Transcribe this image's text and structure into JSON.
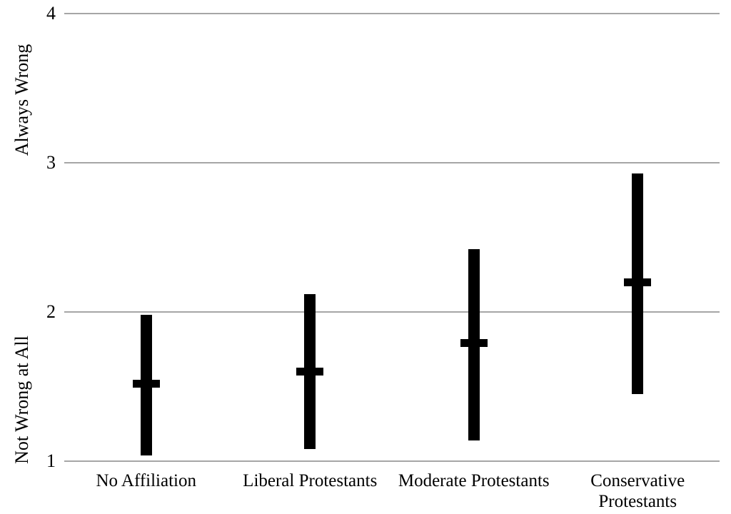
{
  "figure": {
    "background_color": "#ffffff",
    "bar_color": "#000000",
    "gridline_color": "#a6a6a6",
    "text_color": "#000000"
  },
  "chart_data": {
    "type": "bar",
    "subtype": "floating-range-bars-with-mean-tick",
    "title": "",
    "xlabel": "",
    "categories": [
      "No Affiliation",
      "Liberal Protestants",
      "Moderate Protestants",
      "Conservative Protestants"
    ],
    "series": [
      {
        "name": "range_low",
        "values": [
          1.04,
          1.08,
          1.14,
          1.45
        ]
      },
      {
        "name": "mean",
        "values": [
          1.52,
          1.6,
          1.79,
          2.2
        ]
      },
      {
        "name": "range_high",
        "values": [
          1.98,
          2.12,
          2.42,
          2.93
        ]
      }
    ],
    "ylim": [
      1,
      4
    ],
    "yticks": [
      1,
      2,
      3,
      4
    ],
    "ytick_labels": [
      "1",
      "2",
      "3",
      "4"
    ],
    "ylabel_top": "Always Wrong",
    "ylabel_bottom": "Not Wrong at All",
    "grid": true,
    "legend": "none"
  }
}
